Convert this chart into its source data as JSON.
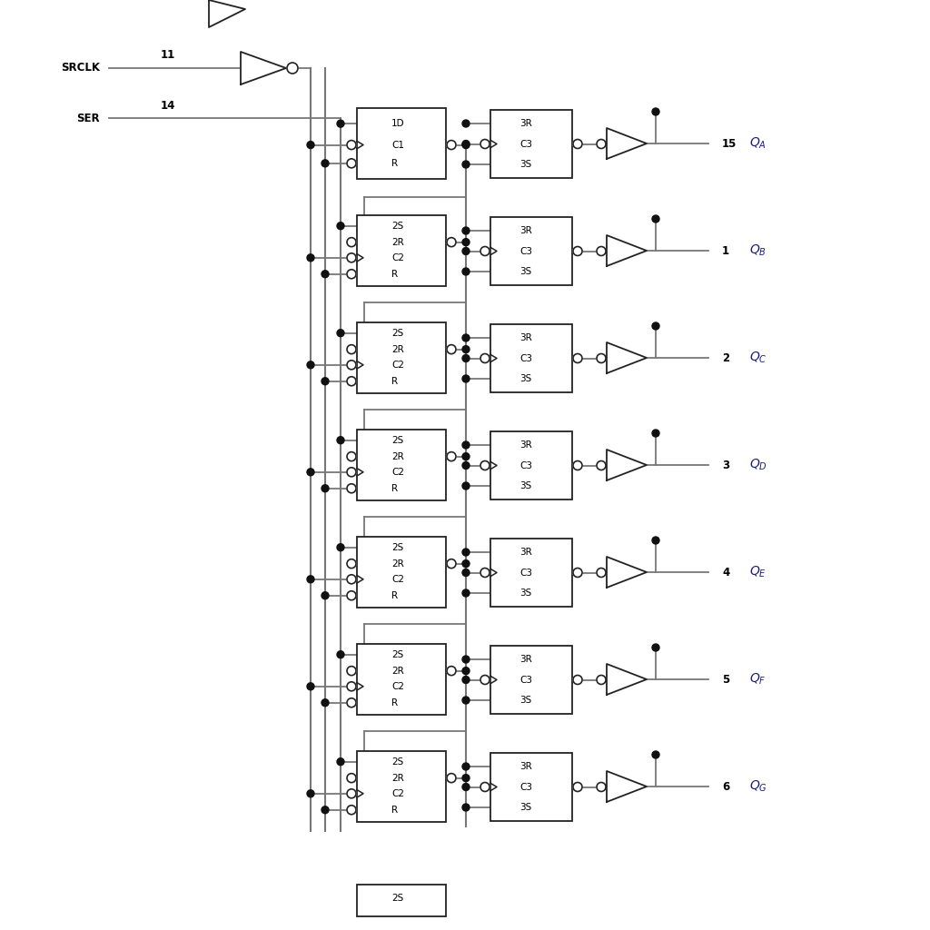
{
  "bg_color": "#ffffff",
  "line_color": "#777777",
  "text_color": "#1a1a80",
  "box_line_color": "#222222",
  "dot_color": "#111111",
  "num_stages": 7,
  "stage_labels": [
    "A",
    "B",
    "C",
    "D",
    "E",
    "F",
    "G"
  ],
  "output_pins": [
    15,
    1,
    2,
    3,
    4,
    5,
    6
  ],
  "srclk_pin": "11",
  "ser_pin": "14",
  "partial_label": "2S"
}
